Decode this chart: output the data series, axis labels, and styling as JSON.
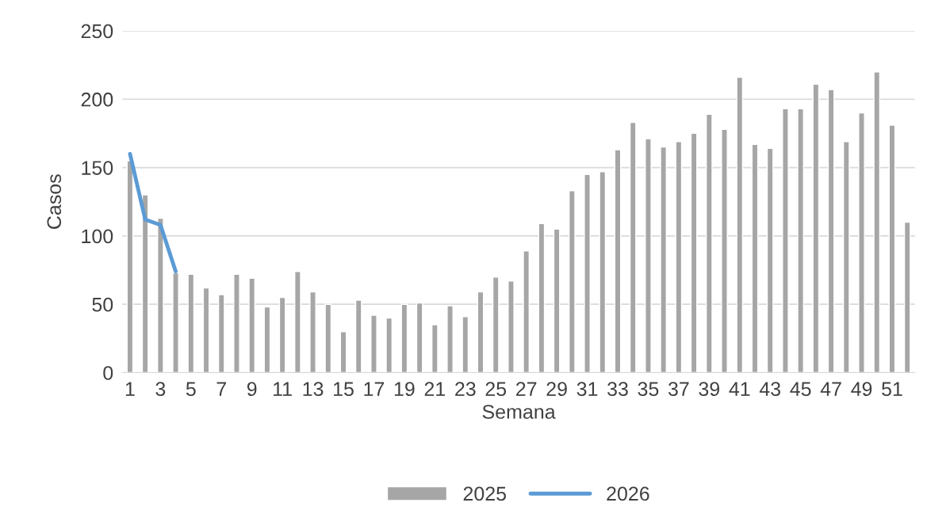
{
  "chart_data": {
    "type": "bar",
    "xlabel": "Semana",
    "ylabel": "Casos",
    "categories": [
      "1",
      null,
      "3",
      null,
      "5",
      null,
      "7",
      null,
      "9",
      null,
      "11",
      null,
      "13",
      null,
      "15",
      null,
      "17",
      null,
      "19",
      null,
      "21",
      null,
      "23",
      null,
      "25",
      null,
      "27",
      null,
      "29",
      null,
      "31",
      null,
      "33",
      null,
      "35",
      null,
      "37",
      null,
      "39",
      null,
      "41",
      null,
      "43",
      null,
      "45",
      null,
      "47",
      null,
      "49",
      null,
      "51",
      null
    ],
    "series": [
      {
        "name": "2025",
        "color": "#a6a6a6",
        "values": [
          155,
          130,
          113,
          73,
          72,
          62,
          57,
          72,
          69,
          48,
          55,
          74,
          59,
          50,
          30,
          53,
          42,
          40,
          50,
          51,
          35,
          49,
          41,
          59,
          70,
          67,
          89,
          109,
          105,
          133,
          145,
          147,
          163,
          183,
          171,
          165,
          169,
          175,
          189,
          178,
          216,
          167,
          164,
          193,
          193,
          211,
          207,
          169,
          190,
          220,
          181,
          110
        ]
      },
      {
        "name": "2026",
        "type": "line",
        "color": "#5b9bd5",
        "values": [
          160,
          112,
          108,
          74,
          null,
          null,
          null,
          null,
          null,
          null,
          null,
          null,
          null,
          null,
          null,
          null,
          null,
          null,
          null,
          null,
          null,
          null,
          null,
          null,
          null,
          null,
          null,
          null,
          null,
          null,
          null,
          null,
          null,
          null,
          null,
          null,
          null,
          null,
          null,
          null,
          null,
          null,
          null,
          null,
          null,
          null,
          null,
          null,
          null,
          null,
          null,
          null
        ]
      }
    ],
    "ylim": [
      0,
      250
    ],
    "yticks": [
      0,
      50,
      100,
      150,
      200,
      250
    ],
    "grid": "y",
    "legend": "bottom"
  }
}
